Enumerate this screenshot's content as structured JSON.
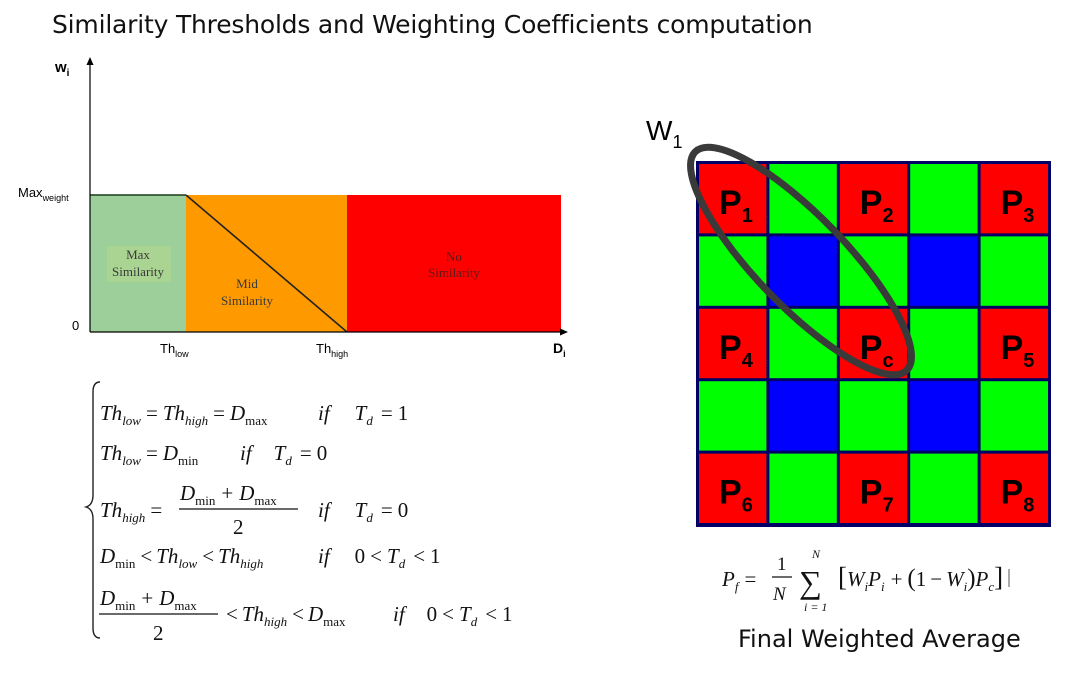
{
  "title": "Similarity Thresholds and Weighting Coefficients computation",
  "caption": "Final Weighted Average",
  "colors": {
    "max": "#9dcf9b",
    "mid": "#ff9900",
    "none": "#ff0000",
    "red": "#ff0000",
    "green": "#00ff00",
    "blue": "#0000ff"
  },
  "graph": {
    "y_axis": {
      "main": "w",
      "sub": "i"
    },
    "x_axis": {
      "main": "D",
      "sub": "i"
    },
    "max_label": {
      "main": "Max",
      "sub": "weight"
    },
    "zero_label": "0",
    "th_low": {
      "main": "Th",
      "sub": "low"
    },
    "th_high": {
      "main": "Th",
      "sub": "high"
    },
    "regions": {
      "max": [
        "Max",
        "Similarity"
      ],
      "mid": [
        "Mid",
        "Similarity"
      ],
      "none": [
        "No",
        "Similarity"
      ]
    }
  },
  "equations": [
    {
      "lhs": {
        "a": "Th",
        "a_sub": "low",
        "eq": "=",
        "b": "Th",
        "b_sub": "high",
        "eq2": "=",
        "c": "D",
        "c_sub": "max"
      },
      "cond": {
        "if": "if",
        "t": "T",
        "t_sub": "d",
        "rel": "=",
        "val": "1"
      }
    },
    {
      "lhs": {
        "a": "Th",
        "a_sub": "low",
        "eq": "=",
        "c": "D",
        "c_sub": "min"
      },
      "cond": {
        "if": "if",
        "t": "T",
        "t_sub": "d",
        "rel": "=",
        "val": "0"
      }
    },
    {
      "lhs": {
        "a": "Th",
        "a_sub": "high",
        "eq": "=",
        "num_a": "D",
        "num_a_sub": "min",
        "plus": "+",
        "num_b": "D",
        "num_b_sub": "max",
        "den": "2"
      },
      "cond": {
        "if": "if",
        "t": "T",
        "t_sub": "d",
        "rel": "=",
        "val": "0"
      }
    },
    {
      "lhs": {
        "a": "D",
        "a_sub": "min",
        "lt": "<",
        "b": "Th",
        "b_sub": "low",
        "lt2": "<",
        "c": "Th",
        "c_sub": "high"
      },
      "cond": {
        "if": "if",
        "lo": "0",
        "lt": "<",
        "t": "T",
        "t_sub": "d",
        "lt2": "<",
        "hi": "1"
      }
    },
    {
      "lhs": {
        "num_a": "D",
        "num_a_sub": "min",
        "plus": "+",
        "num_b": "D",
        "num_b_sub": "max",
        "den": "2",
        "lt": "<",
        "b": "Th",
        "b_sub": "high",
        "lt2": "<",
        "c": "D",
        "c_sub": "max"
      },
      "cond": {
        "if": "if",
        "lo": "0",
        "lt": "<",
        "t": "T",
        "t_sub": "d",
        "lt2": "<",
        "hi": "1"
      }
    }
  ],
  "window": {
    "main": "W",
    "sub": "1"
  },
  "grid": {
    "rows": [
      [
        "red",
        "green",
        "red",
        "green",
        "red"
      ],
      [
        "green",
        "blue",
        "green",
        "blue",
        "green"
      ],
      [
        "red",
        "green",
        "red",
        "green",
        "red"
      ],
      [
        "green",
        "blue",
        "green",
        "blue",
        "green"
      ],
      [
        "red",
        "green",
        "red",
        "green",
        "red"
      ]
    ],
    "labels": [
      {
        "main": "P",
        "sub": "1"
      },
      {
        "main": "P",
        "sub": "2"
      },
      {
        "main": "P",
        "sub": "3"
      },
      {
        "main": "P",
        "sub": "4"
      },
      {
        "main": "P",
        "sub": "c"
      },
      {
        "main": "P",
        "sub": "5"
      },
      {
        "main": "P",
        "sub": "6"
      },
      {
        "main": "P",
        "sub": "7"
      },
      {
        "main": "P",
        "sub": "8"
      }
    ]
  },
  "formula": {
    "pf": "P",
    "pf_sub": "f",
    "eq": "=",
    "one": "1",
    "n": "N",
    "sum": "∑",
    "sum_top": "N",
    "sum_bot": "i = 1",
    "lb": "[",
    "w": "W",
    "w_sub": "i",
    "p": "P",
    "p_sub": "i",
    "plus": "+",
    "lp": "(",
    "one2": "1",
    "minus": "−",
    "w2": "W",
    "w2_sub": "i",
    "rp": ")",
    "pc": "P",
    "pc_sub": "c",
    "rb": "]"
  }
}
